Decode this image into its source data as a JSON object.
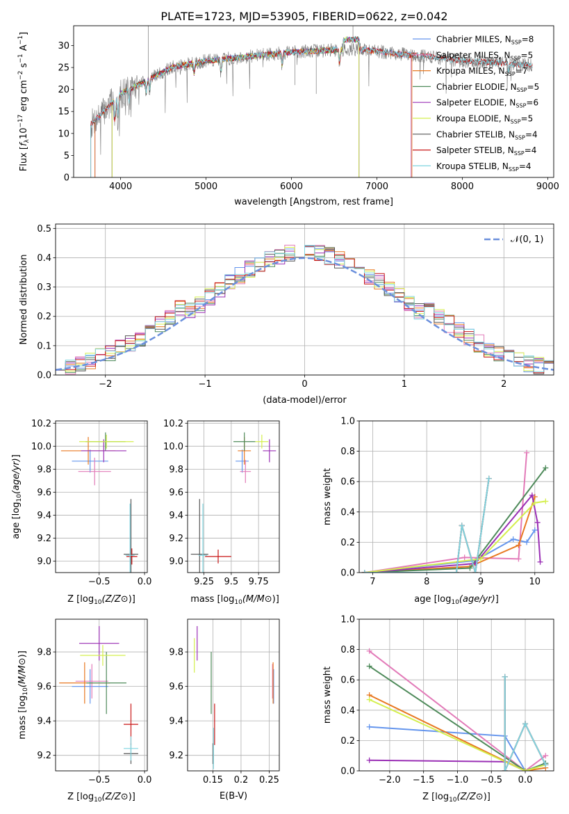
{
  "figure_title": "PLATE=1723, MJD=53905, FIBERID=0622, z=0.042",
  "colors": {
    "Chabrier MILES": "#6495ed",
    "Salpeter MILES": "#e27ab8",
    "Kroupa MILES": "#e87820",
    "Chabrier ELODIE": "#4e8a5a",
    "Salpeter ELODIE": "#9a2fb5",
    "Kroupa ELODIE": "#d4ef4c",
    "Chabrier STELIB": "#555555",
    "Salpeter STELIB": "#c81414",
    "Kroupa STELIB": "#7fd5e0",
    "normal": "#6a8fdc"
  },
  "chart_data": [
    {
      "id": "spectrum",
      "type": "line",
      "title": "PLATE=1723, MJD=53905, FIBERID=0622, z=0.042",
      "xlabel": "wavelength [Angstrom, rest frame]",
      "ylabel": "Flux [f_λ 10^-17 erg cm^-2 s^-1 A^-1]",
      "xlim": [
        3450,
        9070
      ],
      "ylim": [
        0,
        34.5
      ],
      "xticks": [
        4000,
        5000,
        6000,
        7000,
        8000,
        9000
      ],
      "yticks": [
        0,
        5,
        10,
        15,
        20,
        25,
        30
      ],
      "legend_position": "top-right",
      "series": [
        {
          "name": "Chabrier MILES",
          "nssp": "8"
        },
        {
          "name": "Salpeter MILES",
          "nssp": "5"
        },
        {
          "name": "Kroupa MILES",
          "nssp": "7"
        },
        {
          "name": "Chabrier ELODIE",
          "nssp": "5"
        },
        {
          "name": "Salpeter ELODIE",
          "nssp": "6"
        },
        {
          "name": "Kroupa ELODIE",
          "nssp": "5"
        },
        {
          "name": "Chabrier STELIB",
          "nssp": "4"
        },
        {
          "name": "Salpeter STELIB",
          "nssp": "4"
        },
        {
          "name": "Kroupa STELIB",
          "nssp": "4"
        }
      ],
      "data_continuum": [
        [
          3650,
          12
        ],
        [
          3800,
          15
        ],
        [
          4000,
          19
        ],
        [
          4300,
          22
        ],
        [
          4600,
          25
        ],
        [
          5000,
          26.5
        ],
        [
          5500,
          27.5
        ],
        [
          6000,
          28.5
        ],
        [
          6500,
          29
        ],
        [
          6800,
          29.2
        ],
        [
          7200,
          28.2
        ],
        [
          7600,
          27.5
        ],
        [
          8000,
          26.5
        ],
        [
          8500,
          26
        ],
        [
          8820,
          25.5
        ]
      ]
    },
    {
      "id": "residuals",
      "type": "line",
      "xlabel": "(data-model)/error",
      "ylabel": "Normed distribution",
      "xlim": [
        -2.5,
        2.5
      ],
      "ylim": [
        0,
        0.515
      ],
      "xticks": [
        -2,
        -1,
        0,
        1,
        2
      ],
      "yticks": [
        0.0,
        0.1,
        0.2,
        0.3,
        0.4,
        0.5
      ],
      "legend": "𝒩(0, 1)",
      "legend_position": "top-right"
    },
    {
      "id": "age_vs_Z",
      "type": "scatter",
      "xlabel": "Z [log10(Z/Z⊙)]",
      "ylabel": "age [log10(age/yr)]",
      "xlim": [
        -0.98,
        0.03
      ],
      "ylim": [
        8.9,
        10.22
      ],
      "xticks": [
        -0.5,
        0.0
      ],
      "yticks": [
        9.0,
        9.2,
        9.4,
        9.6,
        9.8,
        10.0,
        10.2
      ],
      "points": [
        {
          "series": "Chabrier MILES",
          "x": -0.6,
          "y": 9.87,
          "xerr": 0.2,
          "yerr": 0.1
        },
        {
          "series": "Salpeter MILES",
          "x": -0.55,
          "y": 9.78,
          "xerr": 0.18,
          "yerr": 0.12
        },
        {
          "series": "Kroupa MILES",
          "x": -0.62,
          "y": 9.96,
          "xerr": 0.3,
          "yerr": 0.12
        },
        {
          "series": "Chabrier ELODIE",
          "x": -0.43,
          "y": 10.04,
          "xerr": 0.22,
          "yerr": 0.08
        },
        {
          "series": "Salpeter ELODIE",
          "x": -0.45,
          "y": 9.96,
          "xerr": 0.25,
          "yerr": 0.1
        },
        {
          "series": "Kroupa ELODIE",
          "x": -0.42,
          "y": 10.04,
          "xerr": 0.3,
          "yerr": 0.06
        },
        {
          "series": "Chabrier STELIB",
          "x": -0.15,
          "y": 9.06,
          "xerr": 0.08,
          "yerr": 0.48
        },
        {
          "series": "Salpeter STELIB",
          "x": -0.14,
          "y": 9.04,
          "xerr": 0.06,
          "yerr": 0.07
        },
        {
          "series": "Kroupa STELIB",
          "x": -0.16,
          "y": 9.05,
          "xerr": 0.05,
          "yerr": 0.45
        }
      ]
    },
    {
      "id": "age_vs_mass",
      "type": "scatter",
      "xlabel": "mass [log10(M/M⊙)]",
      "ylabel": "",
      "xlim": [
        9.1,
        9.94
      ],
      "ylim": [
        8.9,
        10.22
      ],
      "xticks": [
        9.25,
        9.5,
        9.75
      ],
      "yticks": [
        9.0,
        9.2,
        9.4,
        9.6,
        9.8,
        10.0,
        10.2
      ],
      "points": [
        {
          "series": "Chabrier MILES",
          "x": 9.6,
          "y": 9.87,
          "xerr": 0.06,
          "yerr": 0.1
        },
        {
          "series": "Salpeter MILES",
          "x": 9.63,
          "y": 9.78,
          "xerr": 0.05,
          "yerr": 0.1
        },
        {
          "series": "Kroupa MILES",
          "x": 9.62,
          "y": 9.96,
          "xerr": 0.06,
          "yerr": 0.12
        },
        {
          "series": "Chabrier ELODIE",
          "x": 9.62,
          "y": 10.04,
          "xerr": 0.1,
          "yerr": 0.08
        },
        {
          "series": "Salpeter ELODIE",
          "x": 9.85,
          "y": 9.96,
          "xerr": 0.06,
          "yerr": 0.1
        },
        {
          "series": "Kroupa ELODIE",
          "x": 9.78,
          "y": 10.04,
          "xerr": 0.06,
          "yerr": 0.06
        },
        {
          "series": "Chabrier STELIB",
          "x": 9.21,
          "y": 9.06,
          "xerr": 0.08,
          "yerr": 0.48
        },
        {
          "series": "Salpeter STELIB",
          "x": 9.38,
          "y": 9.04,
          "xerr": 0.12,
          "yerr": 0.06
        },
        {
          "series": "Kroupa STELIB",
          "x": 9.24,
          "y": 9.05,
          "xerr": 0.04,
          "yerr": 0.45
        }
      ]
    },
    {
      "id": "weight_vs_age",
      "type": "line",
      "xlabel": "age [log10(age/yr)]",
      "ylabel": "mass weight",
      "xlim": [
        6.75,
        10.35
      ],
      "ylim": [
        0,
        1
      ],
      "xticks": [
        7,
        8,
        9,
        10
      ],
      "yticks": [
        0.0,
        0.2,
        0.4,
        0.6,
        0.8,
        1.0
      ],
      "series": [
        {
          "name": "Chabrier MILES",
          "points": [
            [
              6.85,
              0.0
            ],
            [
              8.9,
              0.08
            ],
            [
              9.6,
              0.22
            ],
            [
              9.85,
              0.2
            ],
            [
              10.0,
              0.28
            ]
          ]
        },
        {
          "name": "Salpeter MILES",
          "points": [
            [
              6.85,
              0.0
            ],
            [
              8.7,
              0.1
            ],
            [
              9.7,
              0.09
            ],
            [
              9.85,
              0.79
            ]
          ]
        },
        {
          "name": "Kroupa MILES",
          "points": [
            [
              6.85,
              0.0
            ],
            [
              8.8,
              0.04
            ],
            [
              9.7,
              0.18
            ],
            [
              10.0,
              0.5
            ]
          ]
        },
        {
          "name": "Chabrier ELODIE",
          "points": [
            [
              6.85,
              0.0
            ],
            [
              8.8,
              0.03
            ],
            [
              10.2,
              0.69
            ]
          ]
        },
        {
          "name": "Salpeter ELODIE",
          "points": [
            [
              6.85,
              0.0
            ],
            [
              8.9,
              0.06
            ],
            [
              9.95,
              0.51
            ],
            [
              10.05,
              0.33
            ],
            [
              10.1,
              0.07
            ]
          ]
        },
        {
          "name": "Kroupa ELODIE",
          "points": [
            [
              6.85,
              0.0
            ],
            [
              9.0,
              0.09
            ],
            [
              10.0,
              0.46
            ],
            [
              10.2,
              0.47
            ]
          ]
        },
        {
          "name": "Chabrier STELIB",
          "points": [
            [
              6.85,
              0.0
            ],
            [
              8.55,
              0.0
            ],
            [
              8.65,
              0.31
            ],
            [
              8.9,
              0.0
            ],
            [
              9.15,
              0.62
            ]
          ]
        },
        {
          "name": "Salpeter STELIB",
          "points": [
            [
              6.85,
              0.0
            ],
            [
              8.55,
              0.0
            ],
            [
              8.65,
              0.31
            ],
            [
              8.9,
              0.0
            ],
            [
              9.15,
              0.62
            ]
          ]
        },
        {
          "name": "Kroupa STELIB",
          "points": [
            [
              6.85,
              0.0
            ],
            [
              8.55,
              0.0
            ],
            [
              8.65,
              0.31
            ],
            [
              8.9,
              0.0
            ],
            [
              9.15,
              0.62
            ]
          ]
        }
      ]
    },
    {
      "id": "mass_vs_Z",
      "type": "scatter",
      "xlabel": "Z [log10(Z/Z⊙)]",
      "ylabel": "mass [log10(M/M⊙)]",
      "xlim": [
        -0.98,
        0.03
      ],
      "ylim": [
        9.11,
        9.99
      ],
      "xticks": [
        -0.5,
        0.0
      ],
      "yticks": [
        9.2,
        9.4,
        9.6,
        9.8
      ],
      "points": [
        {
          "series": "Chabrier MILES",
          "x": -0.6,
          "y": 9.6,
          "xerr": 0.2,
          "yerr": 0.1
        },
        {
          "series": "Salpeter MILES",
          "x": -0.58,
          "y": 9.63,
          "xerr": 0.18,
          "yerr": 0.1
        },
        {
          "series": "Kroupa MILES",
          "x": -0.66,
          "y": 9.62,
          "xerr": 0.28,
          "yerr": 0.12
        },
        {
          "series": "Chabrier ELODIE",
          "x": -0.42,
          "y": 9.62,
          "xerr": 0.22,
          "yerr": 0.18
        },
        {
          "series": "Salpeter ELODIE",
          "x": -0.5,
          "y": 9.85,
          "xerr": 0.22,
          "yerr": 0.1
        },
        {
          "series": "Kroupa ELODIE",
          "x": -0.46,
          "y": 9.78,
          "xerr": 0.25,
          "yerr": 0.06
        },
        {
          "series": "Chabrier STELIB",
          "x": -0.15,
          "y": 9.21,
          "xerr": 0.08,
          "yerr": 0.06
        },
        {
          "series": "Salpeter STELIB",
          "x": -0.15,
          "y": 9.38,
          "xerr": 0.08,
          "yerr": 0.12
        },
        {
          "series": "Kroupa STELIB",
          "x": -0.15,
          "y": 9.24,
          "xerr": 0.08,
          "yerr": 0.07
        }
      ]
    },
    {
      "id": "mass_vs_EBV",
      "type": "scatter",
      "xlabel": "E(B-V)",
      "ylabel": "",
      "xlim": [
        0.105,
        0.268
      ],
      "ylim": [
        9.11,
        9.99
      ],
      "xticks": [
        0.15,
        0.2,
        0.25
      ],
      "yticks": [
        9.2,
        9.4,
        9.6,
        9.8
      ],
      "points": [
        {
          "series": "Chabrier MILES",
          "x": 0.258,
          "y": 9.6,
          "xerr": 0.0,
          "yerr": 0.1
        },
        {
          "series": "Salpeter MILES",
          "x": 0.256,
          "y": 9.63,
          "xerr": 0.0,
          "yerr": 0.1
        },
        {
          "series": "Kroupa MILES",
          "x": 0.257,
          "y": 9.62,
          "xerr": 0.0,
          "yerr": 0.12
        },
        {
          "series": "Chabrier ELODIE",
          "x": 0.147,
          "y": 9.62,
          "xerr": 0.0,
          "yerr": 0.18
        },
        {
          "series": "Salpeter ELODIE",
          "x": 0.122,
          "y": 9.85,
          "xerr": 0.0,
          "yerr": 0.1
        },
        {
          "series": "Kroupa ELODIE",
          "x": 0.117,
          "y": 9.78,
          "xerr": 0.0,
          "yerr": 0.1
        },
        {
          "series": "Chabrier STELIB",
          "x": 0.15,
          "y": 9.21,
          "xerr": 0.0,
          "yerr": 0.06
        },
        {
          "series": "Salpeter STELIB",
          "x": 0.153,
          "y": 9.38,
          "xerr": 0.0,
          "yerr": 0.12
        },
        {
          "series": "Kroupa STELIB",
          "x": 0.151,
          "y": 9.24,
          "xerr": 0.0,
          "yerr": 0.12
        }
      ]
    },
    {
      "id": "weight_vs_Z",
      "type": "line",
      "xlabel": "Z [log10(Z/Z⊙)]",
      "ylabel": "mass weight",
      "xlim": [
        -2.45,
        0.42
      ],
      "ylim": [
        0,
        1
      ],
      "xticks": [
        -2.0,
        -1.5,
        -1.0,
        -0.5,
        0.0
      ],
      "yticks": [
        0.0,
        0.2,
        0.4,
        0.6,
        0.8,
        1.0
      ],
      "series": [
        {
          "name": "Chabrier MILES",
          "points": [
            [
              -2.3,
              0.29
            ],
            [
              -0.3,
              0.23
            ],
            [
              0.0,
              0.0
            ],
            [
              0.3,
              0.05
            ]
          ]
        },
        {
          "name": "Salpeter MILES",
          "points": [
            [
              -2.3,
              0.79
            ],
            [
              0.0,
              0.0
            ],
            [
              0.3,
              0.1
            ]
          ]
        },
        {
          "name": "Kroupa MILES",
          "points": [
            [
              -2.3,
              0.5
            ],
            [
              0.0,
              0.0
            ],
            [
              0.3,
              0.02
            ]
          ]
        },
        {
          "name": "Chabrier ELODIE",
          "points": [
            [
              -2.3,
              0.69
            ],
            [
              0.0,
              0.0
            ],
            [
              0.3,
              0.05
            ]
          ]
        },
        {
          "name": "Salpeter ELODIE",
          "points": [
            [
              -2.3,
              0.07
            ],
            [
              -0.3,
              0.06
            ],
            [
              0.0,
              0.0
            ]
          ]
        },
        {
          "name": "Kroupa ELODIE",
          "points": [
            [
              -2.3,
              0.47
            ],
            [
              0.0,
              0.0
            ],
            [
              0.3,
              0.04
            ]
          ]
        },
        {
          "name": "Chabrier STELIB",
          "points": [
            [
              -0.3,
              0.62
            ],
            [
              -0.3,
              0.0
            ],
            [
              0.0,
              0.31
            ],
            [
              0.3,
              0.04
            ]
          ]
        },
        {
          "name": "Salpeter STELIB",
          "points": [
            [
              -0.3,
              0.62
            ],
            [
              -0.3,
              0.0
            ],
            [
              0.0,
              0.31
            ],
            [
              0.3,
              0.04
            ]
          ]
        },
        {
          "name": "Kroupa STELIB",
          "points": [
            [
              -0.3,
              0.62
            ],
            [
              -0.3,
              0.0
            ],
            [
              0.0,
              0.31
            ],
            [
              0.3,
              0.04
            ]
          ]
        }
      ]
    }
  ]
}
